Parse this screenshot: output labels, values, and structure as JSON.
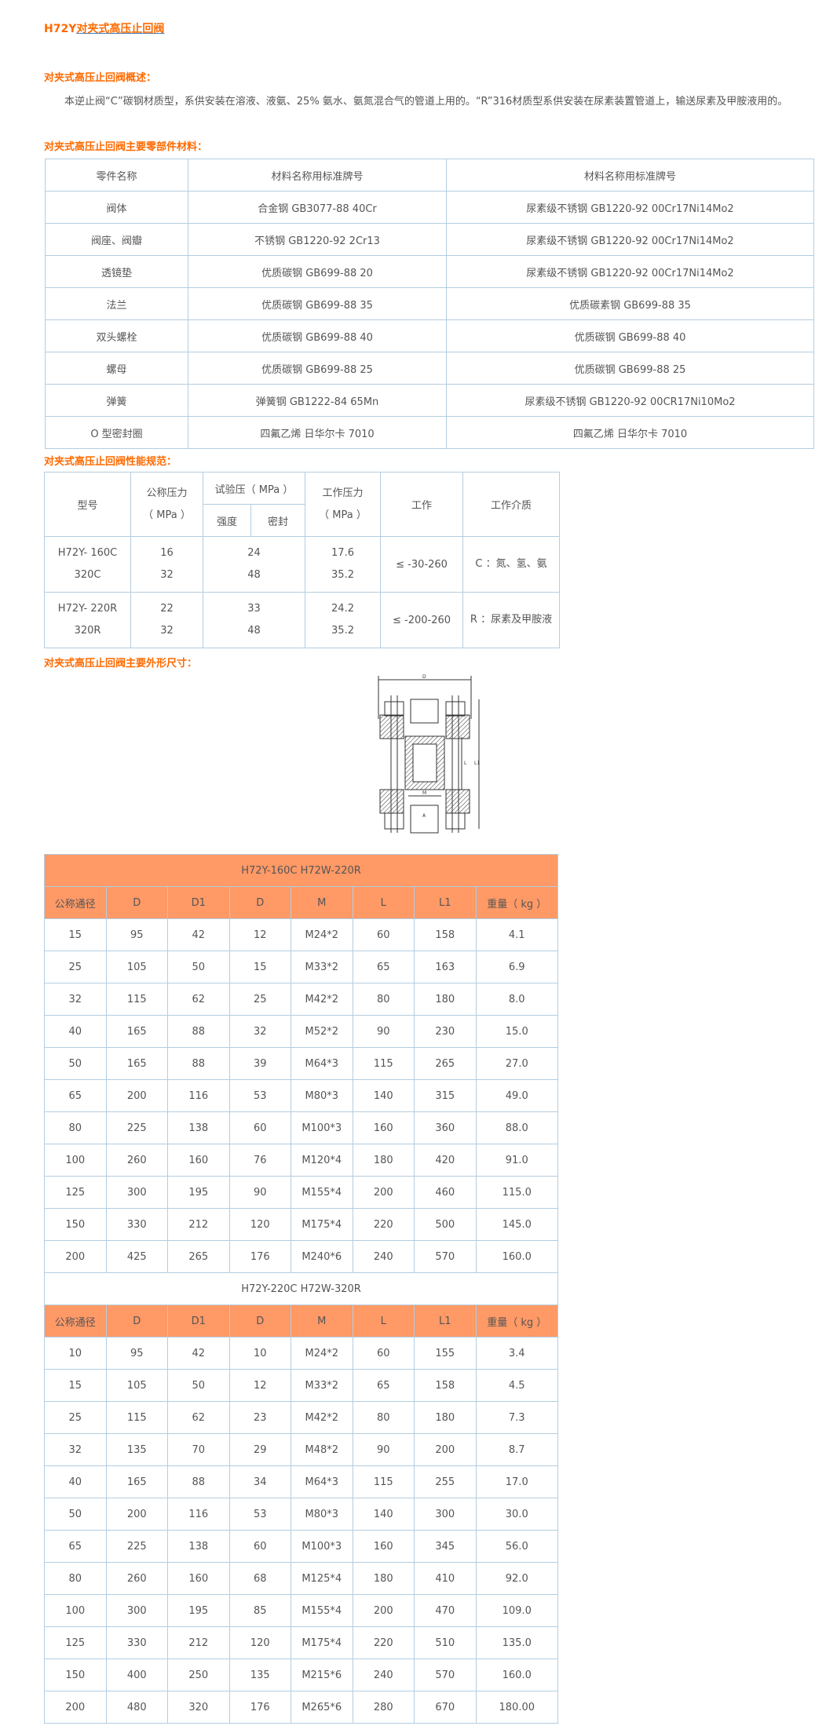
{
  "title": {
    "prefix": "H72Y",
    "link": "对夹式高压止回阀"
  },
  "overview": {
    "heading": "对夹式高压止回阀概述：",
    "text": "本逆止阀“C”碳钢材质型，系供安装在溶液、液氨、25% 氨水、氨氮混合气的管道上用的。“R”316材质型系供安装在尿素装置管道上，输送尿素及甲胺液用的。"
  },
  "materials": {
    "heading": "对夹式高压止回阀主要零部件材料：",
    "headers": [
      "零件名称",
      "材料名称用标准牌号",
      "材料名称用标准牌号"
    ],
    "rows": [
      [
        "阀体",
        "合金钢 GB3077-88 40Cr",
        "尿素级不锈钢 GB1220-92 00Cr17Ni14Mo2"
      ],
      [
        "阀座、阀瓣",
        "不锈钢 GB1220-92 2Cr13",
        "尿素级不锈钢 GB1220-92 00Cr17Ni14Mo2"
      ],
      [
        "透镜垫",
        "优质碳钢 GB699-88 20",
        "尿素级不锈钢 GB1220-92 00Cr17Ni14Mo2"
      ],
      [
        "法兰",
        "优质碳钢 GB699-88 35",
        "优质碳素钢 GB699-88 35"
      ],
      [
        "双头螺栓",
        "优质碳钢 GB699-88 40",
        "优质碳钢 GB699-88 40"
      ],
      [
        "螺母",
        "优质碳钢 GB699-88 25",
        "优质碳钢 GB699-88 25"
      ],
      [
        "弹簧",
        "弹簧钢 GB1222-84 65Mn",
        "尿素级不锈钢 GB1220-92 00CR17Ni10Mo2"
      ],
      [
        "O 型密封圈",
        "四氟乙烯 日华尔卡 7010",
        "四氟乙烯 日华尔卡 7010"
      ]
    ]
  },
  "performance": {
    "heading": "对夹式高压止回阀性能规范：",
    "headers": {
      "model": "型号",
      "nominal_1": "公称压力",
      "nominal_2": "（ MPa ）",
      "test": "试验压（ MPa ）",
      "strength": "强度",
      "seal": "密封",
      "work_1": "工作压力",
      "work_2": "（ MPa ）",
      "work": "工作",
      "medium": "工作介质"
    },
    "rows": [
      {
        "model_a": "H72Y- 160C",
        "model_b": "320C",
        "nominal_a": "16",
        "nominal_b": "32",
        "test_a": "24",
        "test_b": "48",
        "work_a": "17.6",
        "work_b": "35.2",
        "temp": "≤ -30-260",
        "medium": "C ：氮、氢、氨"
      },
      {
        "model_a": "H72Y- 220R",
        "model_b": "320R",
        "nominal_a": "22",
        "nominal_b": "32",
        "test_a": "33",
        "test_b": "48",
        "work_a": "24.2",
        "work_b": "35.2",
        "temp": "≤ -200-260",
        "medium": "R ：尿素及甲胺液"
      }
    ]
  },
  "dimensions": {
    "heading": "对夹式高压止回阀主要外形尺寸：",
    "diagram_labels": {
      "d": "D",
      "l": "L",
      "l1": "L1",
      "m": "M",
      "a": "A"
    },
    "headers": [
      "公称通径",
      "D",
      "D1",
      "D",
      "M",
      "L",
      "L1",
      "重量（ kg ）"
    ],
    "group1": {
      "title": "H72Y-160C H72W-220R",
      "rows": [
        [
          "15",
          "95",
          "42",
          "12",
          "M24*2",
          "60",
          "158",
          "4.1"
        ],
        [
          "25",
          "105",
          "50",
          "15",
          "M33*2",
          "65",
          "163",
          "6.9"
        ],
        [
          "32",
          "115",
          "62",
          "25",
          "M42*2",
          "80",
          "180",
          "8.0"
        ],
        [
          "40",
          "165",
          "88",
          "32",
          "M52*2",
          "90",
          "230",
          "15.0"
        ],
        [
          "50",
          "165",
          "88",
          "39",
          "M64*3",
          "115",
          "265",
          "27.0"
        ],
        [
          "65",
          "200",
          "116",
          "53",
          "M80*3",
          "140",
          "315",
          "49.0"
        ],
        [
          "80",
          "225",
          "138",
          "60",
          "M100*3",
          "160",
          "360",
          "88.0"
        ],
        [
          "100",
          "260",
          "160",
          "76",
          "M120*4",
          "180",
          "420",
          "91.0"
        ],
        [
          "125",
          "300",
          "195",
          "90",
          "M155*4",
          "200",
          "460",
          "115.0"
        ],
        [
          "150",
          "330",
          "212",
          "120",
          "M175*4",
          "220",
          "500",
          "145.0"
        ],
        [
          "200",
          "425",
          "265",
          "176",
          "M240*6",
          "240",
          "570",
          "160.0"
        ]
      ]
    },
    "group2": {
      "title": "H72Y-220C H72W-320R",
      "rows": [
        [
          "10",
          "95",
          "42",
          "10",
          "M24*2",
          "60",
          "155",
          "3.4"
        ],
        [
          "15",
          "105",
          "50",
          "12",
          "M33*2",
          "65",
          "158",
          "4.5"
        ],
        [
          "25",
          "115",
          "62",
          "23",
          "M42*2",
          "80",
          "180",
          "7.3"
        ],
        [
          "32",
          "135",
          "70",
          "29",
          "M48*2",
          "90",
          "200",
          "8.7"
        ],
        [
          "40",
          "165",
          "88",
          "34",
          "M64*3",
          "115",
          "255",
          "17.0"
        ],
        [
          "50",
          "200",
          "116",
          "53",
          "M80*3",
          "140",
          "300",
          "30.0"
        ],
        [
          "65",
          "225",
          "138",
          "60",
          "M100*3",
          "160",
          "345",
          "56.0"
        ],
        [
          "80",
          "260",
          "160",
          "68",
          "M125*4",
          "180",
          "410",
          "92.0"
        ],
        [
          "100",
          "300",
          "195",
          "85",
          "M155*4",
          "200",
          "470",
          "109.0"
        ],
        [
          "125",
          "330",
          "212",
          "120",
          "M175*4",
          "220",
          "510",
          "135.0"
        ],
        [
          "150",
          "400",
          "250",
          "135",
          "M215*6",
          "240",
          "570",
          "160.0"
        ],
        [
          "200",
          "480",
          "320",
          "176",
          "M265*6",
          "280",
          "670",
          "180.00"
        ]
      ]
    }
  },
  "colors": {
    "accent": "#ff6a00",
    "header_bg": "#ff9966",
    "border": "#b3cde0"
  }
}
